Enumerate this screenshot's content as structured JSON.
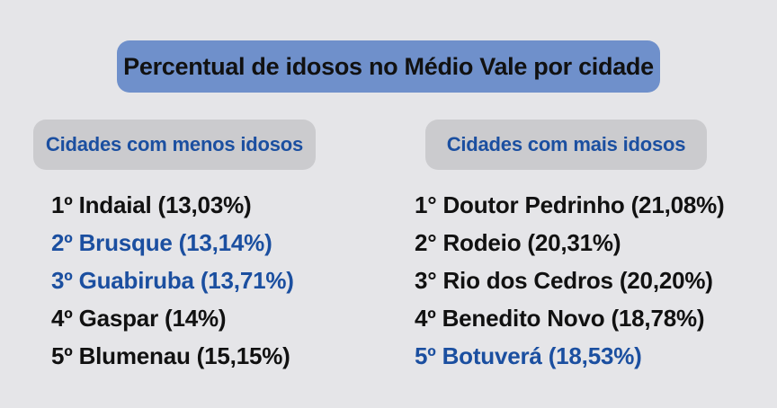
{
  "title": "Percentual de idosos no Médio Vale por cidade",
  "accent_color": "#1b4fa0",
  "title_background": "#6f90cb",
  "left_column": {
    "header": "Cidades com menos idosos",
    "items": [
      {
        "text": "1º Indaial (13,03%)",
        "highlight": false
      },
      {
        "text": "2º Brusque (13,14%)",
        "highlight": true
      },
      {
        "text": "3º Guabiruba (13,71%)",
        "highlight": true
      },
      {
        "text": "4º Gaspar (14%)",
        "highlight": false
      },
      {
        "text": "5º Blumenau (15,15%)",
        "highlight": false
      }
    ]
  },
  "right_column": {
    "header": "Cidades com mais idosos",
    "items": [
      {
        "text": "1° Doutor Pedrinho (21,08%)",
        "highlight": false
      },
      {
        "text": "2° Rodeio (20,31%)",
        "highlight": false
      },
      {
        "text": "3° Rio dos Cedros (20,20%)",
        "highlight": false
      },
      {
        "text": "4º Benedito Novo (18,78%)",
        "highlight": false
      },
      {
        "text": "5º Botuverá (18,53%)",
        "highlight": true
      }
    ]
  }
}
